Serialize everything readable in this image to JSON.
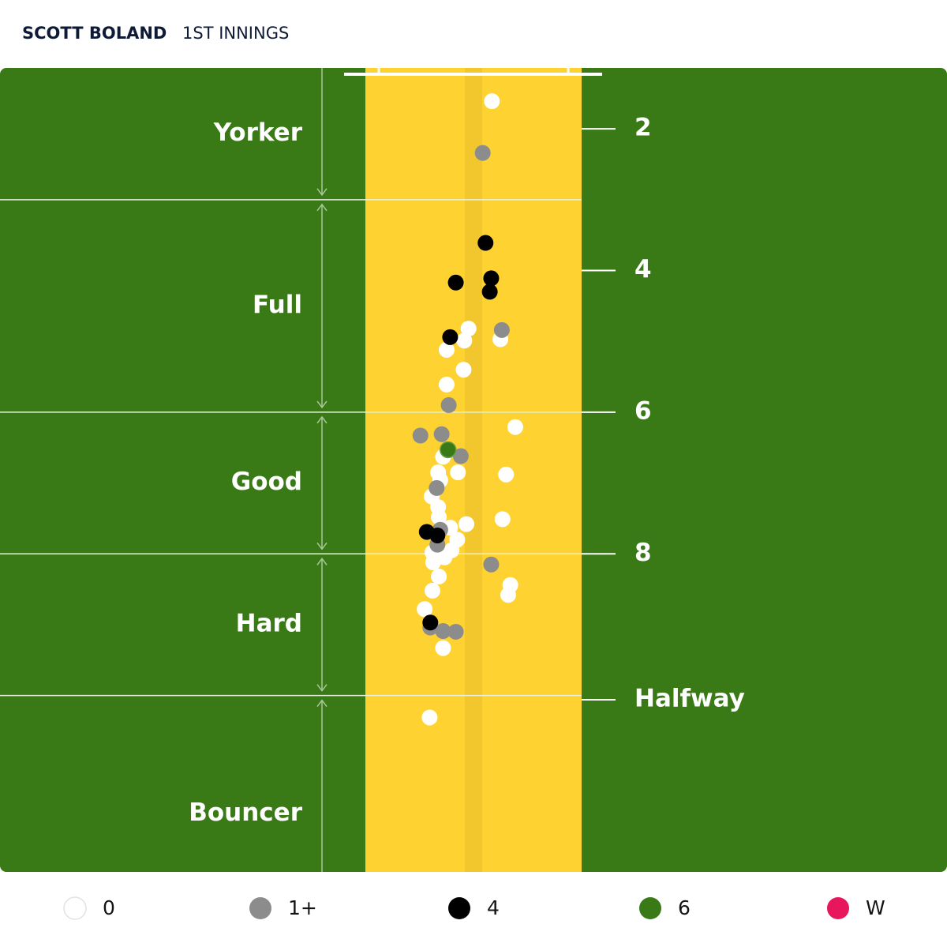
{
  "chart_data": {
    "type": "pitchmap",
    "title": "SCOTT BOLAND",
    "subtitle": "1ST INNINGS",
    "xlim": [
      -6.69,
      6.69
    ],
    "ylim": [
      1.14,
      12.49
    ],
    "yticks": [
      2,
      4,
      6,
      8,
      {
        "value": 10.06,
        "label": "Halfway"
      }
    ],
    "length_zones": [
      "Yorker",
      "Full",
      "Good",
      "Hard",
      "Bouncer"
    ],
    "zone_bounds": [
      3,
      6,
      8,
      10
    ],
    "series": [
      {
        "name": "0",
        "color": "#ffffff",
        "x": [
          0.26,
          -0.07,
          -0.13,
          0.38,
          -0.38,
          -0.14,
          -0.38,
          0.59,
          -0.43,
          -0.22,
          0.46,
          -0.5,
          -0.47,
          -0.59,
          -0.5,
          0.41,
          -0.1,
          -0.49,
          -0.33,
          -0.23,
          -0.58,
          -0.41,
          -0.31,
          -0.57,
          -0.49,
          -0.58,
          0.52,
          0.49,
          -0.69,
          -0.43,
          -0.62
        ],
        "values": [
          1.61,
          4.82,
          4.99,
          4.97,
          5.12,
          5.4,
          5.61,
          6.21,
          6.63,
          6.85,
          6.88,
          6.85,
          6.96,
          7.19,
          7.34,
          7.51,
          7.58,
          7.48,
          7.63,
          7.8,
          7.98,
          8.05,
          7.95,
          8.12,
          8.32,
          8.52,
          8.44,
          8.58,
          8.78,
          9.33,
          10.31
        ]
      },
      {
        "name": "1+",
        "color": "#8c8c8c",
        "x": [
          0.13,
          0.4,
          -0.35,
          -0.75,
          -0.45,
          -0.18,
          -0.52,
          -0.47,
          -0.51,
          0.25,
          -0.61,
          -0.43,
          -0.25
        ],
        "values": [
          2.34,
          4.84,
          5.9,
          6.33,
          6.31,
          6.62,
          7.07,
          7.66,
          7.87,
          8.15,
          9.04,
          9.09,
          9.1
        ]
      },
      {
        "name": "4",
        "color": "#000000",
        "x": [
          0.17,
          -0.25,
          0.25,
          0.23,
          -0.33,
          -0.66,
          -0.51,
          -0.61
        ],
        "values": [
          3.61,
          4.17,
          4.11,
          4.3,
          4.94,
          7.69,
          7.74,
          8.97
        ]
      },
      {
        "name": "6",
        "color": "#3a7a16",
        "x": [
          -0.36
        ],
        "values": [
          6.53
        ]
      },
      {
        "name": "W",
        "color": "#e8175d",
        "x": [],
        "values": []
      }
    ]
  }
}
